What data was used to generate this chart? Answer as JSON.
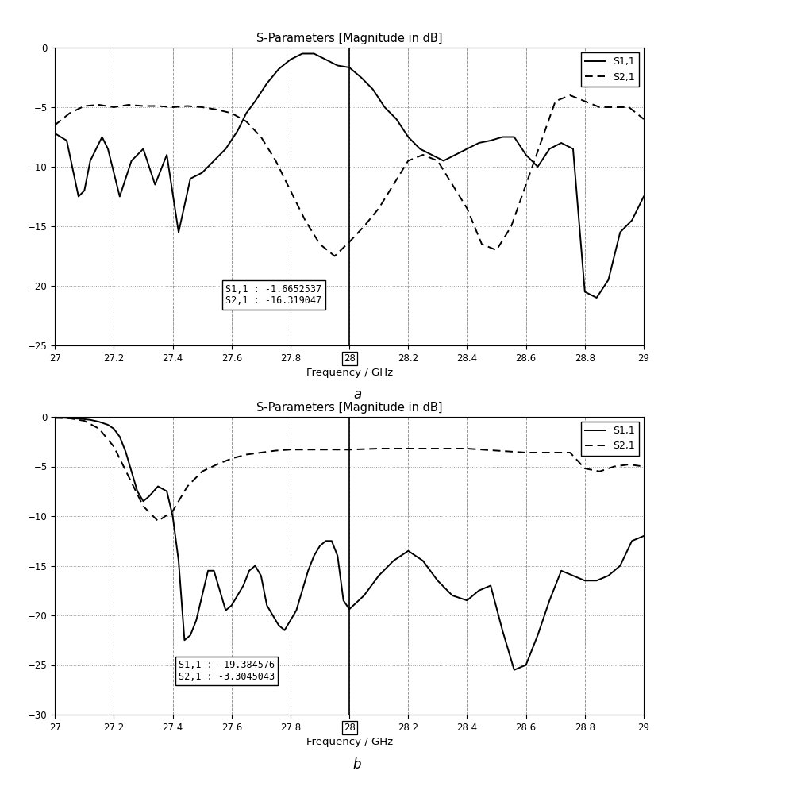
{
  "title": "S-Parameters [Magnitude in dB]",
  "xlabel": "Frequency / GHz",
  "xmin": 27,
  "xmax": 29,
  "background": "#ffffff",
  "label_a": "a",
  "label_b": "b",
  "plot_a": {
    "ylim": [
      -25,
      0
    ],
    "yticks": [
      0,
      -5,
      -10,
      -15,
      -20,
      -25
    ],
    "annotation": "S1,1 : -1.6652537\nS2,1 : -16.319047",
    "ann_x": 27.58,
    "ann_y": -21.5,
    "vline_x": 28,
    "s11_x": [
      27.0,
      27.04,
      27.08,
      27.1,
      27.12,
      27.16,
      27.18,
      27.22,
      27.26,
      27.3,
      27.34,
      27.38,
      27.42,
      27.46,
      27.5,
      27.54,
      27.58,
      27.62,
      27.65,
      27.68,
      27.72,
      27.76,
      27.8,
      27.84,
      27.88,
      27.92,
      27.96,
      28.0,
      28.04,
      28.08,
      28.12,
      28.16,
      28.2,
      28.24,
      28.28,
      28.32,
      28.36,
      28.4,
      28.44,
      28.48,
      28.52,
      28.56,
      28.6,
      28.64,
      28.68,
      28.72,
      28.76,
      28.8,
      28.84,
      28.88,
      28.92,
      28.96,
      29.0
    ],
    "s11_y": [
      -7.2,
      -7.8,
      -12.5,
      -12.0,
      -9.5,
      -7.5,
      -8.5,
      -12.5,
      -9.5,
      -8.5,
      -11.5,
      -9.0,
      -15.5,
      -11.0,
      -10.5,
      -9.5,
      -8.5,
      -7.0,
      -5.5,
      -4.5,
      -3.0,
      -1.8,
      -1.0,
      -0.5,
      -0.5,
      -1.0,
      -1.5,
      -1.665,
      -2.5,
      -3.5,
      -5.0,
      -6.0,
      -7.5,
      -8.5,
      -9.0,
      -9.5,
      -9.0,
      -8.5,
      -8.0,
      -7.8,
      -7.5,
      -7.5,
      -9.0,
      -10.0,
      -8.5,
      -8.0,
      -8.5,
      -20.5,
      -21.0,
      -19.5,
      -15.5,
      -14.5,
      -12.5
    ],
    "s21_x": [
      27.0,
      27.05,
      27.1,
      27.15,
      27.2,
      27.25,
      27.3,
      27.35,
      27.4,
      27.45,
      27.5,
      27.55,
      27.6,
      27.65,
      27.7,
      27.75,
      27.8,
      27.85,
      27.9,
      27.95,
      28.0,
      28.05,
      28.1,
      28.15,
      28.2,
      28.25,
      28.3,
      28.35,
      28.4,
      28.45,
      28.5,
      28.55,
      28.6,
      28.65,
      28.7,
      28.75,
      28.8,
      28.85,
      28.9,
      28.95,
      29.0
    ],
    "s21_y": [
      -6.5,
      -5.5,
      -4.9,
      -4.8,
      -5.0,
      -4.8,
      -4.9,
      -4.9,
      -5.0,
      -4.9,
      -5.0,
      -5.2,
      -5.5,
      -6.2,
      -7.5,
      -9.5,
      -12.0,
      -14.5,
      -16.5,
      -17.5,
      -16.319,
      -15.0,
      -13.5,
      -11.5,
      -9.5,
      -9.0,
      -9.5,
      -11.5,
      -13.5,
      -16.5,
      -17.0,
      -15.0,
      -11.5,
      -8.0,
      -4.5,
      -4.0,
      -4.5,
      -5.0,
      -5.0,
      -5.0,
      -6.0
    ]
  },
  "plot_b": {
    "ylim": [
      -30,
      0
    ],
    "yticks": [
      0,
      -5,
      -10,
      -15,
      -20,
      -25,
      -30
    ],
    "annotation": "S1,1 : -19.384576\nS2,1 : -3.3045043",
    "ann_x": 27.42,
    "ann_y": -26.5,
    "vline_x": 28,
    "s11_x": [
      27.0,
      27.03,
      27.06,
      27.09,
      27.12,
      27.15,
      27.18,
      27.2,
      27.22,
      27.24,
      27.26,
      27.28,
      27.3,
      27.32,
      27.35,
      27.38,
      27.4,
      27.42,
      27.44,
      27.46,
      27.48,
      27.5,
      27.52,
      27.54,
      27.56,
      27.58,
      27.6,
      27.62,
      27.64,
      27.66,
      27.68,
      27.7,
      27.72,
      27.74,
      27.76,
      27.78,
      27.8,
      27.82,
      27.84,
      27.86,
      27.88,
      27.9,
      27.92,
      27.94,
      27.96,
      27.98,
      28.0,
      28.05,
      28.1,
      28.15,
      28.2,
      28.25,
      28.3,
      28.35,
      28.4,
      28.44,
      28.48,
      28.52,
      28.56,
      28.6,
      28.64,
      28.68,
      28.72,
      28.76,
      28.8,
      28.84,
      28.88,
      28.92,
      28.96,
      29.0
    ],
    "s11_y": [
      -0.1,
      -0.1,
      -0.15,
      -0.2,
      -0.3,
      -0.5,
      -0.8,
      -1.2,
      -2.0,
      -3.5,
      -5.5,
      -7.5,
      -8.5,
      -8.0,
      -7.0,
      -7.5,
      -10.0,
      -14.5,
      -22.5,
      -22.0,
      -20.5,
      -18.0,
      -15.5,
      -15.5,
      -17.5,
      -19.5,
      -19.0,
      -18.0,
      -17.0,
      -15.5,
      -15.0,
      -16.0,
      -19.0,
      -20.0,
      -21.0,
      -21.5,
      -20.5,
      -19.5,
      -17.5,
      -15.5,
      -14.0,
      -13.0,
      -12.5,
      -12.5,
      -14.0,
      -18.5,
      -19.384,
      -18.0,
      -16.0,
      -14.5,
      -13.5,
      -14.5,
      -16.5,
      -18.0,
      -18.5,
      -17.5,
      -17.0,
      -21.5,
      -25.5,
      -25.0,
      -22.0,
      -18.5,
      -15.5,
      -16.0,
      -16.5,
      -16.5,
      -16.0,
      -15.0,
      -12.5,
      -12.0
    ],
    "s21_x": [
      27.0,
      27.05,
      27.1,
      27.15,
      27.2,
      27.25,
      27.3,
      27.35,
      27.4,
      27.45,
      27.5,
      27.55,
      27.6,
      27.65,
      27.7,
      27.75,
      27.8,
      27.85,
      27.9,
      27.95,
      28.0,
      28.05,
      28.1,
      28.15,
      28.2,
      28.25,
      28.3,
      28.35,
      28.4,
      28.45,
      28.5,
      28.55,
      28.6,
      28.65,
      28.7,
      28.75,
      28.8,
      28.85,
      28.9,
      28.95,
      29.0
    ],
    "s21_y": [
      -0.1,
      -0.15,
      -0.4,
      -1.2,
      -3.0,
      -6.0,
      -9.0,
      -10.5,
      -9.5,
      -7.0,
      -5.5,
      -4.8,
      -4.2,
      -3.8,
      -3.6,
      -3.4,
      -3.3,
      -3.3,
      -3.3,
      -3.3,
      -3.3045,
      -3.25,
      -3.2,
      -3.2,
      -3.2,
      -3.2,
      -3.2,
      -3.2,
      -3.2,
      -3.3,
      -3.4,
      -3.5,
      -3.6,
      -3.6,
      -3.6,
      -3.6,
      -5.2,
      -5.5,
      -5.0,
      -4.8,
      -5.0
    ]
  }
}
